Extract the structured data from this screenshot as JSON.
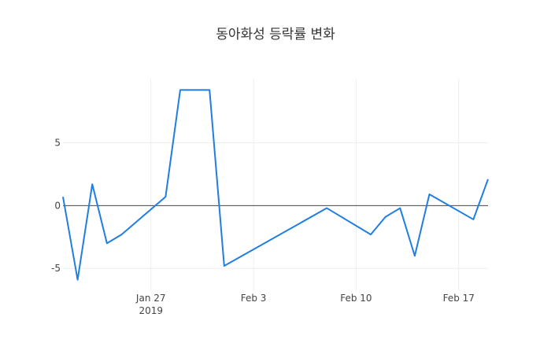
{
  "chart_data": {
    "type": "line",
    "title": "동아화성 등락률 변화",
    "x": [
      "2019-01-21",
      "2019-01-22",
      "2019-01-23",
      "2019-01-24",
      "2019-01-25",
      "2019-01-28",
      "2019-01-29",
      "2019-01-31",
      "2019-02-01",
      "2019-02-08",
      "2019-02-11",
      "2019-02-12",
      "2019-02-13",
      "2019-02-14",
      "2019-02-15",
      "2019-02-18",
      "2019-02-19"
    ],
    "series": [
      {
        "name": "등락률",
        "color": "#1f7ee0",
        "values": [
          0.7,
          -5.9,
          1.7,
          -3.0,
          -2.3,
          0.7,
          9.2,
          9.2,
          -4.8,
          -0.2,
          -2.3,
          -0.9,
          -0.2,
          -4.0,
          0.9,
          -1.1,
          2.1
        ]
      }
    ],
    "xlim": [
      "2019-01-21",
      "2019-02-19"
    ],
    "xticks": [
      {
        "value": "2019-01-27",
        "label": "Jan 27\n2019"
      },
      {
        "value": "2019-02-03",
        "label": "Feb 3"
      },
      {
        "value": "2019-02-10",
        "label": "Feb 10"
      },
      {
        "value": "2019-02-17",
        "label": "Feb 17"
      }
    ],
    "ylim": [
      -6.8,
      10.1
    ],
    "yticks": [
      -5,
      0,
      5
    ],
    "grid": true
  }
}
